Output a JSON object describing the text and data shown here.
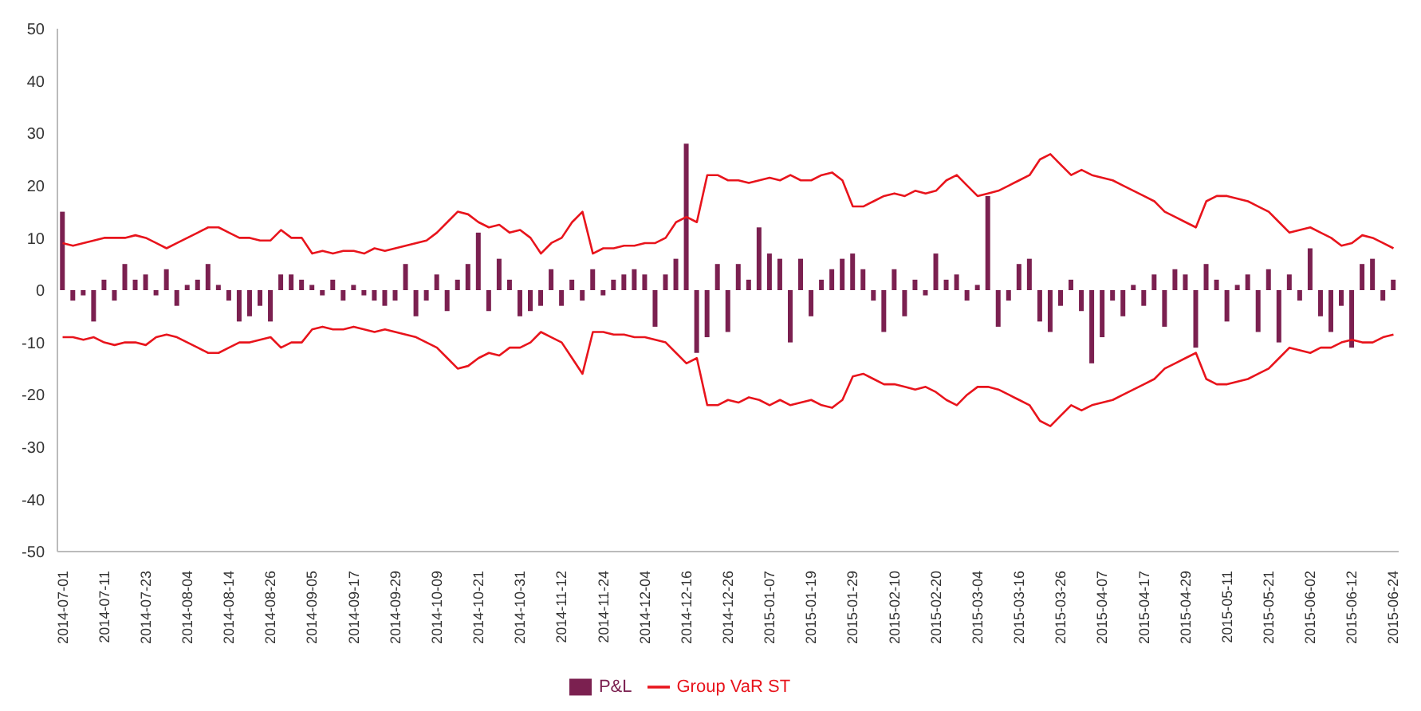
{
  "chart_data": {
    "type": "bar",
    "categories": [
      "2014-07-01",
      null,
      null,
      null,
      "2014-07-11",
      null,
      null,
      null,
      "2014-07-23",
      null,
      null,
      null,
      "2014-08-04",
      null,
      null,
      null,
      "2014-08-14",
      null,
      null,
      null,
      "2014-08-26",
      null,
      null,
      null,
      "2014-09-05",
      null,
      null,
      null,
      "2014-09-17",
      null,
      null,
      null,
      "2014-09-29",
      null,
      null,
      null,
      "2014-10-09",
      null,
      null,
      null,
      "2014-10-21",
      null,
      null,
      null,
      "2014-10-31",
      null,
      null,
      null,
      "2014-11-12",
      null,
      null,
      null,
      "2014-11-24",
      null,
      null,
      null,
      "2014-12-04",
      null,
      null,
      null,
      "2014-12-16",
      null,
      null,
      null,
      "2014-12-26",
      null,
      null,
      null,
      "2015-01-07",
      null,
      null,
      null,
      "2015-01-19",
      null,
      null,
      null,
      "2015-01-29",
      null,
      null,
      null,
      "2015-02-10",
      null,
      null,
      null,
      "2015-02-20",
      null,
      null,
      null,
      "2015-03-04",
      null,
      null,
      null,
      "2015-03-16",
      null,
      null,
      null,
      "2015-03-26",
      null,
      null,
      null,
      "2015-04-07",
      null,
      null,
      null,
      "2015-04-17",
      null,
      null,
      null,
      "2015-04-29",
      null,
      null,
      null,
      "2015-05-11",
      null,
      null,
      null,
      "2015-05-21",
      null,
      null,
      null,
      "2015-06-02",
      null,
      null,
      null,
      "2015-06-12",
      null,
      null,
      null,
      "2015-06-24"
    ],
    "series": [
      {
        "name": "P&L",
        "color": "#7b2050",
        "values": [
          15,
          -2,
          -1,
          -6,
          2,
          -2,
          5,
          2,
          3,
          -1,
          4,
          -3,
          1,
          2,
          5,
          1,
          -2,
          -6,
          -5,
          -3,
          -6,
          3,
          3,
          2,
          1,
          -1,
          2,
          -2,
          1,
          -1,
          -2,
          -3,
          -2,
          5,
          -5,
          -2,
          3,
          -4,
          2,
          5,
          11,
          -4,
          6,
          2,
          -5,
          -4,
          -3,
          4,
          -3,
          2,
          -2,
          4,
          -1,
          2,
          3,
          4,
          3,
          -7,
          3,
          6,
          28,
          -12,
          -9,
          5,
          -8,
          5,
          2,
          12,
          7,
          6,
          -10,
          6,
          -5,
          2,
          4,
          6,
          7,
          4,
          -2,
          -8,
          4,
          -5,
          2,
          -1,
          7,
          2,
          3,
          -2,
          1,
          18,
          -7,
          -2,
          5,
          6,
          -6,
          -8,
          -3,
          2,
          -4,
          -14,
          -9,
          -2,
          -5,
          1,
          -3,
          3,
          -7,
          4,
          3,
          -11,
          5,
          2,
          -6,
          1,
          3,
          -8,
          4,
          -10,
          3,
          -2,
          8,
          -5,
          -8,
          -3,
          -11,
          5,
          6,
          -2,
          2
        ]
      },
      {
        "name": "Group VaR ST",
        "type": "line",
        "color": "#e8141c",
        "values": [
          9,
          8.5,
          9,
          9.5,
          10,
          10,
          10,
          10.5,
          10,
          9,
          8,
          9,
          10,
          11,
          12,
          12,
          11,
          10,
          10,
          9.5,
          9.5,
          11.5,
          10,
          10,
          7,
          7.5,
          7,
          7.5,
          7.5,
          7,
          8,
          7.5,
          8,
          8.5,
          9,
          9.5,
          11,
          13,
          15,
          14.5,
          13,
          12,
          12.5,
          11,
          11.5,
          10,
          7,
          9,
          10,
          13,
          15,
          7,
          8,
          8,
          8.5,
          8.5,
          9,
          9,
          10,
          13,
          14,
          13,
          22,
          22,
          21,
          21,
          20.5,
          21,
          21.5,
          21,
          22,
          21,
          21,
          22,
          22.5,
          21,
          16,
          16,
          17,
          18,
          18.5,
          18,
          19,
          18.5,
          19,
          21,
          22,
          20,
          18,
          18.5,
          19,
          20,
          21,
          22,
          25,
          26,
          24,
          22,
          23,
          22,
          21.5,
          21,
          20,
          19,
          18,
          17,
          15,
          14,
          13,
          12,
          17,
          18,
          18,
          17.5,
          17,
          16,
          15,
          13,
          11,
          11.5,
          12,
          11,
          10,
          8.5,
          9,
          10.5,
          10,
          9,
          8
        ]
      },
      {
        "type": "line",
        "color": "#e8141c",
        "values": [
          -9,
          -9,
          -9.5,
          -9,
          -10,
          -10.5,
          -10,
          -10,
          -10.5,
          -9,
          -8.5,
          -9,
          -10,
          -11,
          -12,
          -12,
          -11,
          -10,
          -10,
          -9.5,
          -9,
          -11,
          -10,
          -10,
          -7.5,
          -7,
          -7.5,
          -7.5,
          -7,
          -7.5,
          -8,
          -7.5,
          -8,
          -8.5,
          -9,
          -10,
          -11,
          -13,
          -15,
          -14.5,
          -13,
          -12,
          -12.5,
          -11,
          -11,
          -10,
          -8,
          -9,
          -10,
          -13,
          -16,
          -8,
          -8,
          -8.5,
          -8.5,
          -9,
          -9,
          -9.5,
          -10,
          -12,
          -14,
          -13,
          -22,
          -22,
          -21,
          -21.5,
          -20.5,
          -21,
          -22,
          -21,
          -22,
          -21.5,
          -21,
          -22,
          -22.5,
          -21,
          -16.5,
          -16,
          -17,
          -18,
          -18,
          -18.5,
          -19,
          -18.5,
          -19.5,
          -21,
          -22,
          -20,
          -18.5,
          -18.5,
          -19,
          -20,
          -21,
          -22,
          -25,
          -26,
          -24,
          -22,
          -23,
          -22,
          -21.5,
          -21,
          -20,
          -19,
          -18,
          -17,
          -15,
          -14,
          -13,
          -12,
          -17,
          -18,
          -18,
          -17.5,
          -17,
          -16,
          -15,
          -13,
          -11,
          -11.5,
          -12,
          -11,
          -11,
          -10,
          -9.5,
          -10,
          -10,
          -9,
          -8.5
        ]
      }
    ],
    "ylim": [
      -50,
      50
    ],
    "yticks": [
      -50,
      -40,
      -30,
      -20,
      -10,
      0,
      10,
      20,
      30,
      40,
      50
    ],
    "legend": "bottom",
    "marker": "none",
    "line_style": "solid"
  }
}
